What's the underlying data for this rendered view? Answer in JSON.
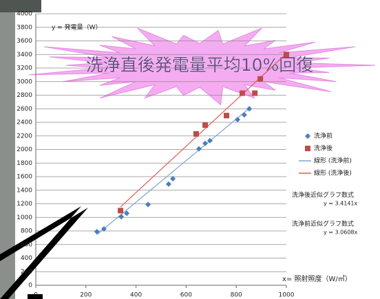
{
  "chart_data": {
    "type": "scatter",
    "banner": "洗浄直後発電量平均10%回復",
    "y_label": "y = 発電量（W）",
    "x_label": "x= 照射照度（W/㎡）",
    "xlim": [
      0,
      1000
    ],
    "xticks": [
      0,
      200,
      400,
      600,
      800,
      1000
    ],
    "ylim": [
      0,
      4000
    ],
    "yticks": [
      0,
      200,
      400,
      600,
      800,
      1000,
      1200,
      1400,
      1600,
      1800,
      2000,
      2200,
      2400,
      2600,
      2800,
      3000,
      3200,
      3400,
      3600,
      3800,
      4000
    ],
    "grid": true,
    "series": [
      {
        "name": "洗浄前",
        "color": "#4a7ebb",
        "marker": "diamond",
        "x": [
          244,
          272,
          341,
          363,
          448,
          530,
          547,
          651,
          676,
          695,
          805,
          832,
          852
        ],
        "values": [
          790,
          830,
          1010,
          1060,
          1190,
          1490,
          1570,
          2010,
          2090,
          2130,
          2440,
          2510,
          2600
        ]
      },
      {
        "name": "洗浄後",
        "color": "#be4b48",
        "marker": "square",
        "x": [
          338,
          640,
          676,
          761,
          824,
          874,
          896,
          1000
        ],
        "values": [
          1100,
          2230,
          2360,
          2500,
          2830,
          2830,
          3040,
          3400
        ]
      }
    ],
    "trendlines": [
      {
        "name": "線形 (洗浄前)",
        "slope": 3.0608,
        "color": "#7ba3d6"
      },
      {
        "name": "線形 (洗浄後)",
        "slope": 3.4141,
        "color": "#e05a55"
      }
    ],
    "equations": [
      {
        "title": "洗浄後近似グラフ数式",
        "label": "y = 3.4141x"
      },
      {
        "title": "洗浄前近似グラフ数式",
        "label": "y = 3.0608x"
      }
    ]
  }
}
